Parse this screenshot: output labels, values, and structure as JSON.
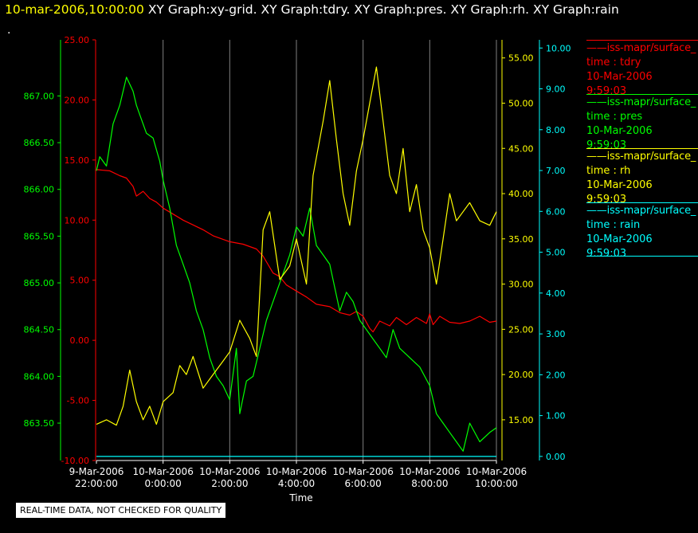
{
  "header": {
    "timestamp": "10-mar-2006,10:00:00",
    "graphs": "XY Graph:xy-grid.  XY Graph:tdry.  XY Graph:pres.  XY Graph:rh.  XY Graph:rain",
    "dot": "."
  },
  "warning": "REAL-TIME DATA, NOT CHECKED FOR QUALITY",
  "colors": {
    "tdry": "#ff0000",
    "pres": "#00ff00",
    "rh": "#ffff00",
    "rain": "#00ffff",
    "grid": "#808080"
  },
  "legend": [
    {
      "line": "——iss-mapr/surface_",
      "var": "time : tdry",
      "date": "10-Mar-2006",
      "time": "9:59:03"
    },
    {
      "line": "——iss-mapr/surface_",
      "var": "time : pres",
      "date": "10-Mar-2006",
      "time": "9:59:03"
    },
    {
      "line": "——iss-mapr/surface_",
      "var": "time : rh",
      "date": "10-Mar-2006",
      "time": "9:59:03"
    },
    {
      "line": "——iss-mapr/surface_",
      "var": "time : rain",
      "date": "10-Mar-2006",
      "time": "9:59:03"
    }
  ],
  "chart_data": {
    "type": "line",
    "xlabel": "Time",
    "x_ticks": [
      {
        "hour": -2,
        "line1": "9-Mar-2006",
        "line2": "22:00:00"
      },
      {
        "hour": 0,
        "line1": "10-Mar-2006",
        "line2": "0:00:00"
      },
      {
        "hour": 2,
        "line1": "10-Mar-2006",
        "line2": "2:00:00"
      },
      {
        "hour": 4,
        "line1": "10-Mar-2006",
        "line2": "4:00:00"
      },
      {
        "hour": 6,
        "line1": "10-Mar-2006",
        "line2": "6:00:00"
      },
      {
        "hour": 8,
        "line1": "10-Mar-2006",
        "line2": "8:00:00"
      },
      {
        "hour": 10,
        "line1": "10-Mar-2006",
        "line2": "10:00:00"
      }
    ],
    "xlim_hours": [
      -2,
      10
    ],
    "grid": "vertical",
    "axes": {
      "pres": {
        "ticks": [
          "867.00",
          "866.50",
          "866.00",
          "865.50",
          "865.00",
          "864.50",
          "864.00",
          "863.50"
        ],
        "ylim": [
          863.1,
          867.6
        ]
      },
      "tdry": {
        "ticks": [
          "25.00",
          "20.00",
          "15.00",
          "10.00",
          "5.00",
          "0.00",
          "-5.00",
          "-10.00"
        ],
        "ylim": [
          -10,
          25
        ]
      },
      "rh": {
        "ticks": [
          "55.00",
          "50.00",
          "45.00",
          "40.00",
          "35.00",
          "30.00",
          "25.00",
          "20.00",
          "15.00"
        ],
        "ylim": [
          10.5,
          57
        ]
      },
      "rain": {
        "ticks": [
          "10.00",
          "9.00",
          "8.00",
          "7.00",
          "6.00",
          "5.00",
          "4.00",
          "3.00",
          "2.00",
          "1.00",
          "0.00"
        ],
        "ylim": [
          -0.1,
          10.2
        ]
      }
    },
    "series": [
      {
        "name": "tdry",
        "color": "#ff0000",
        "axis": "tdry",
        "x": [
          -2,
          -1.6,
          -1.3,
          -1.1,
          -0.9,
          -0.8,
          -0.6,
          -0.4,
          -0.2,
          0,
          0.3,
          0.6,
          0.9,
          1.2,
          1.5,
          2,
          2.4,
          2.8,
          3,
          3.3,
          3.5,
          3.7,
          4,
          4.3,
          4.6,
          5,
          5.3,
          5.6,
          5.8,
          6,
          6.2,
          6.3,
          6.5,
          6.8,
          7,
          7.3,
          7.6,
          7.9,
          8,
          8.1,
          8.3,
          8.6,
          8.9,
          9.2,
          9.5,
          9.8,
          10
        ],
        "values": [
          14.2,
          14.1,
          13.7,
          13.5,
          12.8,
          12.0,
          12.4,
          11.8,
          11.5,
          11.0,
          10.5,
          10.0,
          9.6,
          9.2,
          8.7,
          8.2,
          8.0,
          7.6,
          7.0,
          5.6,
          5.3,
          4.6,
          4.1,
          3.6,
          3.0,
          2.8,
          2.3,
          2.1,
          2.4,
          2.0,
          1.0,
          0.7,
          1.6,
          1.2,
          1.9,
          1.3,
          1.9,
          1.4,
          2.2,
          1.3,
          2.0,
          1.5,
          1.4,
          1.6,
          2.0,
          1.5,
          1.6
        ]
      },
      {
        "name": "pres",
        "color": "#00ff00",
        "axis": "pres",
        "x": [
          -2,
          -1.9,
          -1.7,
          -1.5,
          -1.3,
          -1.1,
          -0.9,
          -0.8,
          -0.7,
          -0.5,
          -0.3,
          -0.1,
          0,
          0.2,
          0.4,
          0.6,
          0.8,
          1,
          1.2,
          1.4,
          1.6,
          1.8,
          2,
          2.2,
          2.3,
          2.5,
          2.7,
          2.9,
          3.1,
          3.3,
          3.5,
          3.8,
          4,
          4.2,
          4.4,
          4.6,
          4.8,
          5,
          5.3,
          5.5,
          5.7,
          5.9,
          6.1,
          6.3,
          6.5,
          6.7,
          6.9,
          7.1,
          7.4,
          7.7,
          8,
          8.2,
          8.4,
          8.6,
          8.8,
          9,
          9.2,
          9.5,
          9.8,
          10
        ],
        "values": [
          866.2,
          866.35,
          866.25,
          866.7,
          866.9,
          867.2,
          867.05,
          866.9,
          866.8,
          866.6,
          866.55,
          866.3,
          866.1,
          865.8,
          865.4,
          865.2,
          865.0,
          864.7,
          864.5,
          864.2,
          864.0,
          863.9,
          863.75,
          864.3,
          863.6,
          863.95,
          864.0,
          864.3,
          864.6,
          864.8,
          865.0,
          865.3,
          865.6,
          865.5,
          865.8,
          865.4,
          865.3,
          865.2,
          864.7,
          864.9,
          864.8,
          864.6,
          864.5,
          864.4,
          864.3,
          864.2,
          864.5,
          864.3,
          864.2,
          864.1,
          863.9,
          863.6,
          863.5,
          863.4,
          863.3,
          863.2,
          863.5,
          863.3,
          863.4,
          863.45
        ]
      },
      {
        "name": "rh",
        "color": "#ffff00",
        "axis": "rh",
        "x": [
          -2,
          -1.7,
          -1.4,
          -1.2,
          -1,
          -0.8,
          -0.6,
          -0.4,
          -0.2,
          0,
          0.3,
          0.5,
          0.7,
          0.9,
          1.2,
          1.5,
          1.8,
          2,
          2.3,
          2.6,
          2.8,
          3,
          3.2,
          3.5,
          3.8,
          4,
          4.3,
          4.5,
          4.8,
          5,
          5.2,
          5.4,
          5.6,
          5.8,
          6,
          6.2,
          6.4,
          6.6,
          6.8,
          7,
          7.2,
          7.4,
          7.6,
          7.8,
          8,
          8.2,
          8.4,
          8.6,
          8.8,
          9,
          9.2,
          9.5,
          9.8,
          10
        ],
        "values": [
          14.5,
          15.0,
          14.4,
          16.5,
          20.5,
          17.0,
          15.0,
          16.5,
          14.5,
          17.0,
          18.0,
          21.0,
          20.0,
          22.0,
          18.5,
          20.0,
          21.5,
          22.5,
          26.0,
          24.0,
          22.0,
          36.0,
          38.0,
          30.5,
          32.0,
          35.0,
          30.0,
          42.0,
          48.0,
          52.5,
          46.0,
          40.0,
          36.5,
          42.5,
          46.0,
          50.0,
          54.0,
          48.0,
          42.0,
          40.0,
          45.0,
          38.0,
          41.0,
          36.0,
          34.0,
          30.0,
          35.0,
          40.0,
          37.0,
          38.0,
          39.0,
          37.0,
          36.5,
          38.0
        ]
      },
      {
        "name": "rain",
        "color": "#00ffff",
        "axis": "rain",
        "x": [
          -2,
          10
        ],
        "values": [
          0.0,
          0.0
        ]
      }
    ]
  }
}
